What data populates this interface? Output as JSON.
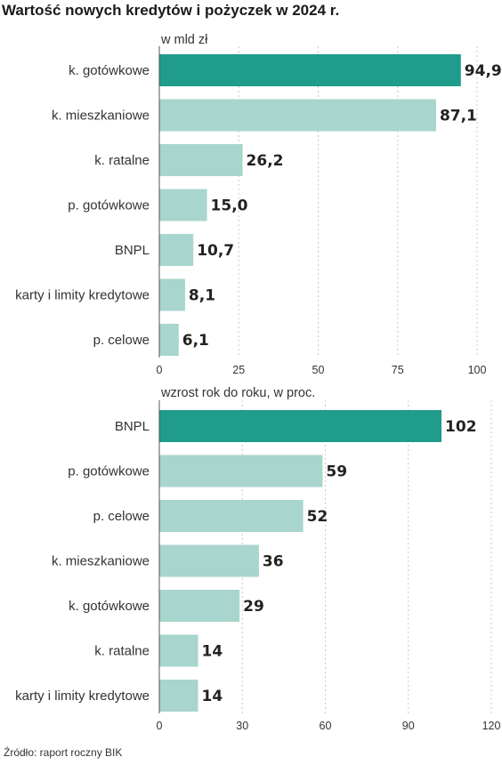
{
  "title": "Wartość nowych kredytów i pożyczek w 2024 r.",
  "source": "Źródło: raport roczny BIK",
  "colors": {
    "highlight": "#1f9c8b",
    "bar": "#a8d5cd"
  },
  "chart_data": [
    {
      "type": "bar",
      "orientation": "horizontal",
      "subtitle": "w mld zł",
      "categories": [
        "k. gotówkowe",
        "k. mieszkaniowe",
        "k. ratalne",
        "p. gotówkowe",
        "BNPL",
        "karty i limity kredytowe",
        "p.  celowe"
      ],
      "values": [
        94.9,
        87.1,
        26.2,
        15.0,
        10.7,
        8.1,
        6.1
      ],
      "value_labels": [
        "94,9",
        "87,1",
        "26,2",
        "15,0",
        "10,7",
        "8,1",
        "6,1"
      ],
      "highlight_index": 0,
      "xlim": [
        0,
        100
      ],
      "xticks": [
        0,
        25,
        50,
        75,
        100
      ],
      "grid": true
    },
    {
      "type": "bar",
      "orientation": "horizontal",
      "subtitle": "wzrost rok do roku, w proc.",
      "categories": [
        "BNPL",
        "p. gotówkowe",
        "p.  celowe",
        "k. mieszkaniowe",
        "k. gotówkowe",
        "k. ratalne",
        "karty i limity kredytowe"
      ],
      "values": [
        102,
        59,
        52,
        36,
        29,
        14,
        14
      ],
      "value_labels": [
        "102",
        "59",
        "52",
        "36",
        "29",
        "14",
        "14"
      ],
      "highlight_index": 0,
      "xlim": [
        0,
        120
      ],
      "xticks": [
        0,
        30,
        60,
        90,
        120
      ],
      "grid": true
    }
  ]
}
